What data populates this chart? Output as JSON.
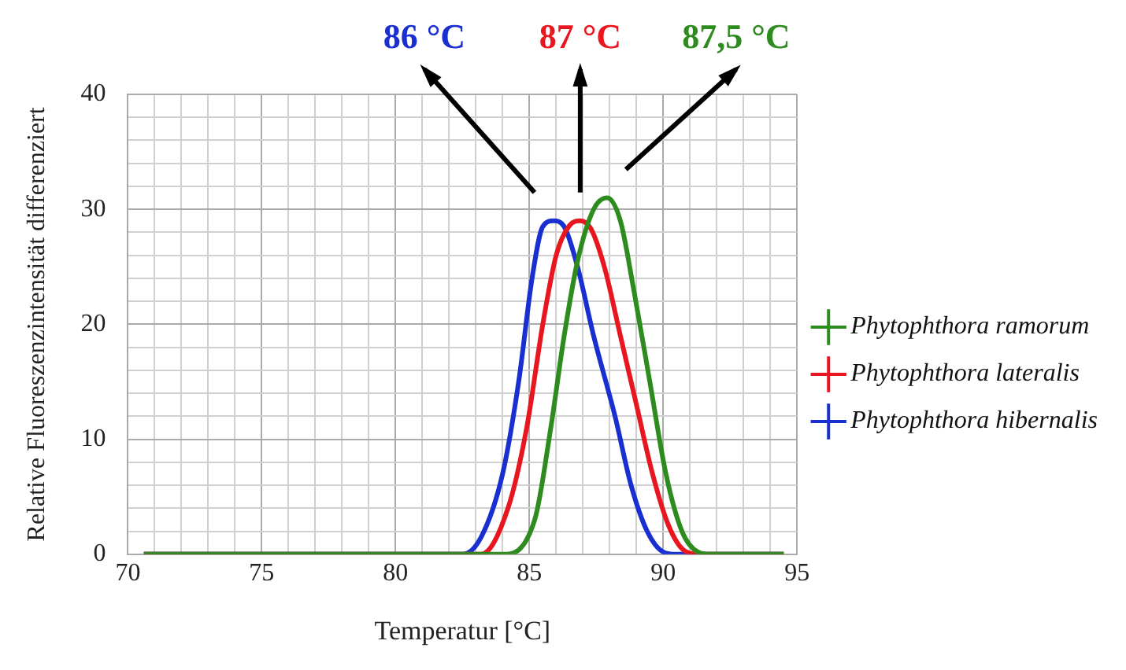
{
  "chart_data": {
    "type": "line",
    "xlabel": "Temperatur [°C]",
    "ylabel": "Relative Fluoreszenzintensität differenziert",
    "xlim": [
      70,
      95
    ],
    "ylim": [
      0,
      40
    ],
    "xticks": [
      70,
      {
        "value": 71,
        "label": null
      },
      {
        "value": 72,
        "label": null
      },
      {
        "value": 73,
        "label": null
      },
      {
        "value": 74,
        "label": null
      },
      75,
      {
        "value": 76,
        "label": null
      },
      {
        "value": 77,
        "label": null
      },
      {
        "value": 78,
        "label": null
      },
      {
        "value": 79,
        "label": null
      },
      80,
      {
        "value": 81,
        "label": null
      },
      {
        "value": 82,
        "label": null
      },
      {
        "value": 83,
        "label": null
      },
      {
        "value": 84,
        "label": null
      },
      85,
      {
        "value": 86,
        "label": null
      },
      {
        "value": 87,
        "label": null
      },
      {
        "value": 88,
        "label": null
      },
      {
        "value": 89,
        "label": null
      },
      90,
      {
        "value": 91,
        "label": null
      },
      {
        "value": 92,
        "label": null
      },
      {
        "value": 93,
        "label": null
      },
      {
        "value": 94,
        "label": null
      },
      95
    ],
    "yticks": [
      0,
      {
        "value": 2,
        "label": null
      },
      {
        "value": 4,
        "label": null
      },
      {
        "value": 6,
        "label": null
      },
      {
        "value": 8,
        "label": null
      },
      10,
      {
        "value": 12,
        "label": null
      },
      {
        "value": 14,
        "label": null
      },
      {
        "value": 16,
        "label": null
      },
      {
        "value": 18,
        "label": null
      },
      20,
      {
        "value": 22,
        "label": null
      },
      {
        "value": 24,
        "label": null
      },
      {
        "value": 26,
        "label": null
      },
      {
        "value": 28,
        "label": null
      },
      30,
      {
        "value": 32,
        "label": null
      },
      {
        "value": 34,
        "label": null
      },
      {
        "value": 36,
        "label": null
      },
      {
        "value": 38,
        "label": null
      },
      40
    ],
    "grid": true,
    "legend": "right",
    "marker": "none",
    "line_style": "solid",
    "series": [
      {
        "name": "Phytophthora ramorum",
        "color": "#2e8b1e",
        "x": [
          70.6,
          84,
          85.2,
          85.8,
          86.3,
          86.8,
          87.4,
          87.9,
          88.4,
          88.9,
          89.5,
          90.1,
          90.7,
          91.3,
          91.8,
          94.5
        ],
        "values": [
          0,
          0,
          3,
          11,
          19,
          25.5,
          30,
          31,
          29,
          23,
          15,
          7,
          2,
          0.2,
          0,
          0
        ]
      },
      {
        "name": "Phytophthora lateralis",
        "color": "#e8161e",
        "x": [
          70.6,
          83.2,
          84.2,
          84.9,
          85.5,
          86,
          86.5,
          86.9,
          87.3,
          87.8,
          88.4,
          89,
          89.6,
          90.2,
          90.8,
          91.4,
          94.5
        ],
        "values": [
          0,
          0,
          4,
          11,
          20,
          26,
          28.6,
          29,
          28.3,
          25,
          19,
          13,
          7,
          2.5,
          0.3,
          0,
          0
        ]
      },
      {
        "name": "Phytophthora hibernalis",
        "color": "#1a2fd0",
        "x": [
          70.6,
          82.5,
          83.2,
          84,
          84.6,
          85.1,
          85.5,
          85.9,
          86.3,
          86.8,
          87.4,
          88.2,
          88.8,
          89.4,
          90,
          90.5,
          94.5
        ],
        "values": [
          0,
          0,
          1.5,
          7,
          15,
          24,
          28.5,
          29,
          28.5,
          25,
          19,
          12,
          6,
          2,
          0.2,
          0,
          0
        ]
      }
    ],
    "annotations": [
      "86 °C",
      "87 °C",
      "87,5 °C"
    ]
  }
}
